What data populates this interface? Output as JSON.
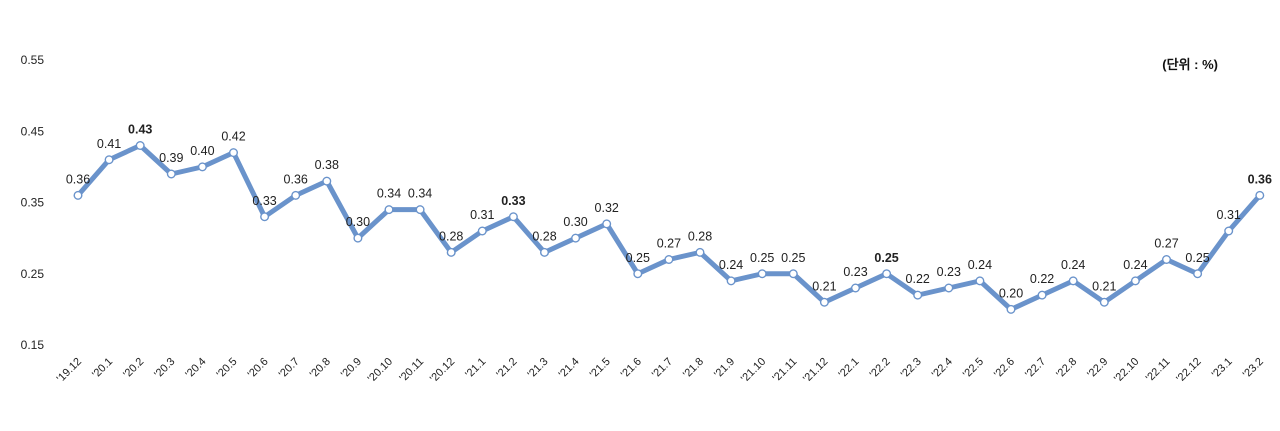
{
  "chart_data": {
    "type": "line",
    "unit_label": "(단위 : %)",
    "ylim": [
      0.15,
      0.55
    ],
    "yticks": [
      "0.15",
      "0.25",
      "0.35",
      "0.45",
      "0.55"
    ],
    "grid": false,
    "legend": "none",
    "line_color": "#6A93CB",
    "categories": [
      "'19.12",
      "'20.1",
      "'20.2",
      "'20.3",
      "'20.4",
      "'20.5",
      "'20.6",
      "'20.7",
      "'20.8",
      "'20.9",
      "'20.10",
      "'20.11",
      "'20.12",
      "'21.1",
      "'21.2",
      "'21.3",
      "'21.4",
      "'21.5",
      "'21.6",
      "'21.7",
      "'21.8",
      "'21.9",
      "'21.10",
      "'21.11",
      "'21.12",
      "'22.1",
      "'22.2",
      "'22.3",
      "'22.4",
      "'22.5",
      "'22.6",
      "'22.7",
      "'22.8",
      "'22.9",
      "'22.10",
      "'22.11",
      "'22.12",
      "'23.1",
      "'23.2"
    ],
    "values": [
      0.36,
      0.41,
      0.43,
      0.39,
      0.4,
      0.42,
      0.33,
      0.36,
      0.38,
      0.3,
      0.34,
      0.34,
      0.28,
      0.31,
      0.33,
      0.28,
      0.3,
      0.32,
      0.25,
      0.27,
      0.28,
      0.24,
      0.25,
      0.25,
      0.21,
      0.23,
      0.25,
      0.22,
      0.23,
      0.24,
      0.2,
      0.22,
      0.24,
      0.21,
      0.24,
      0.27,
      0.25,
      0.31,
      0.36
    ],
    "data_labels": [
      "0.36",
      "0.41",
      "0.43",
      "0.39",
      "0.40",
      "0.42",
      "0.33",
      "0.36",
      "0.38",
      "0.30",
      "0.34",
      "0.34",
      "0.28",
      "0.31",
      "0.33",
      "0.28",
      "0.30",
      "0.32",
      "0.25",
      "0.27",
      "0.28",
      "0.24",
      "0.25",
      "0.25",
      "0.21",
      "0.23",
      "0.25",
      "0.22",
      "0.23",
      "0.24",
      "0.20",
      "0.22",
      "0.24",
      "0.21",
      "0.24",
      "0.27",
      "0.25",
      "0.31",
      "0.36"
    ],
    "bold_labels": [
      2,
      14,
      26,
      38
    ]
  }
}
